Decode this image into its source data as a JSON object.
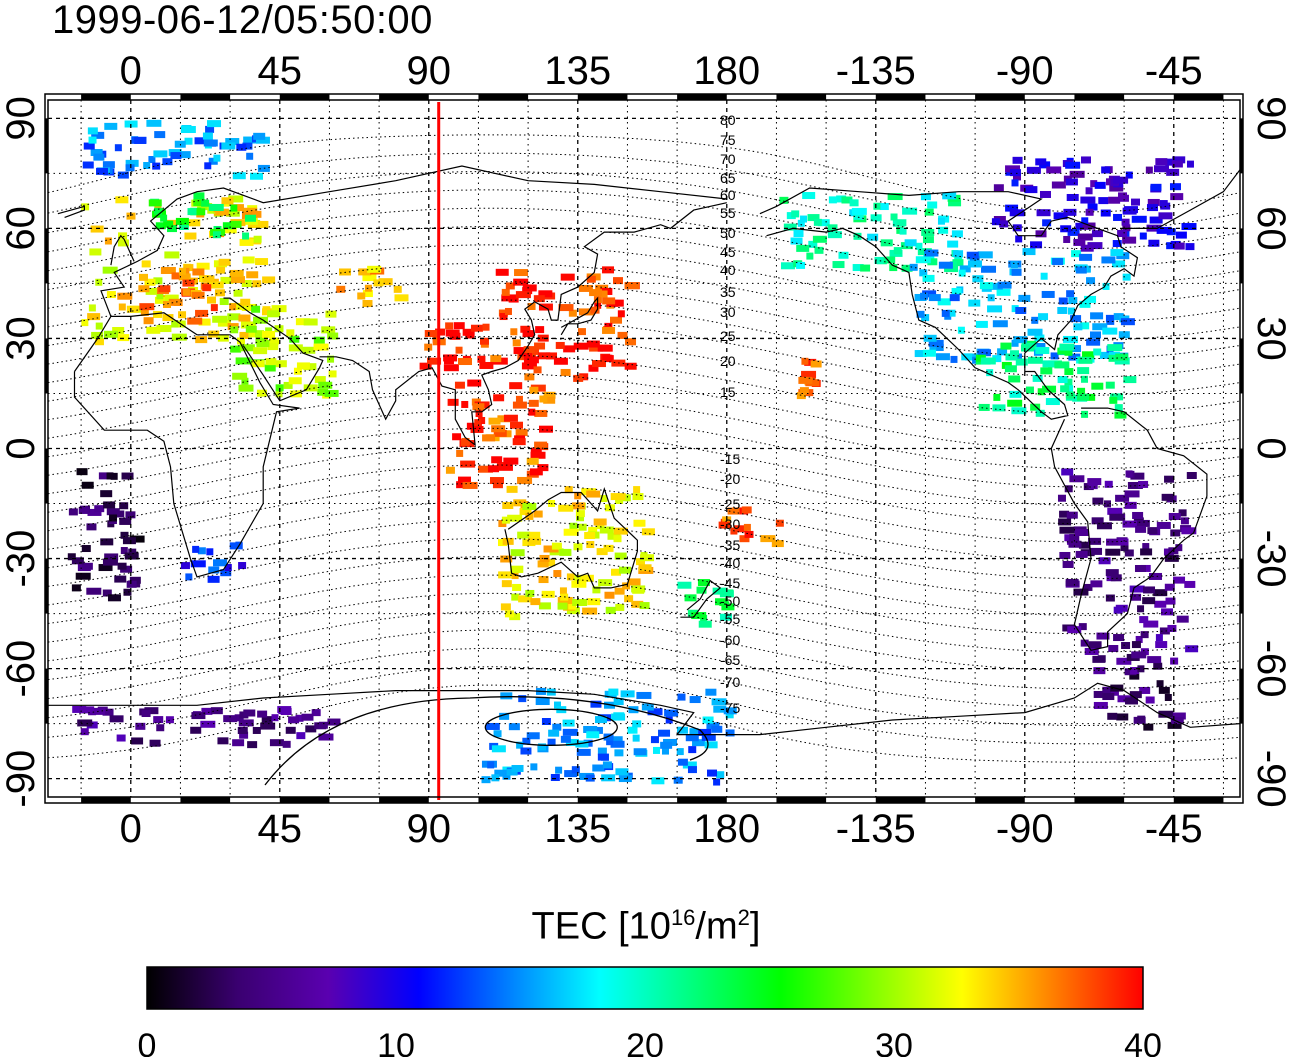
{
  "header": {
    "timestamp": "1999-06-12/05:50:00"
  },
  "axes": {
    "lon_ticks": [
      "0",
      "45",
      "90",
      "135",
      "180",
      "-135",
      "-90",
      "-45"
    ],
    "lat_ticks": [
      "90",
      "60",
      "30",
      "0",
      "-30",
      "-60",
      "-90"
    ]
  },
  "contours": {
    "north_labels": [
      "80",
      "75",
      "70",
      "65",
      "60",
      "55",
      "50",
      "45",
      "40",
      "35",
      "30",
      "25",
      "20",
      "15"
    ],
    "south_labels": [
      "-15",
      "-20",
      "-25",
      "-30",
      "-35",
      "-40",
      "-45",
      "-50",
      "-55",
      "-60",
      "-65",
      "-70",
      "-75"
    ]
  },
  "colorbar": {
    "title_prefix": "TEC  [10",
    "title_exp1": "16",
    "title_mid": "/m",
    "title_exp2": "2",
    "title_suffix": "]",
    "min": 0,
    "max": 40,
    "ticks": [
      "0",
      "10",
      "20",
      "30",
      "40"
    ],
    "colors": [
      "#000000",
      "#3a0070",
      "#5a00b0",
      "#0000ff",
      "#0080ff",
      "#00ffff",
      "#00ff80",
      "#00ff00",
      "#80ff00",
      "#ffff00",
      "#ff8000",
      "#ff0000"
    ]
  },
  "marker": {
    "longitude": 93,
    "color": "#ff0000"
  },
  "map_extent": {
    "lon_min": -25,
    "lon_max": 335,
    "lat_min": -95,
    "lat_max": 95
  },
  "tec_clusters": [
    {
      "region": "Europe",
      "lon": [
        -15,
        40
      ],
      "lat": [
        30,
        70
      ],
      "tec": 33
    },
    {
      "region": "Italy / Mediterranean",
      "lon": [
        0,
        25
      ],
      "lat": [
        35,
        50
      ],
      "tec": 36
    },
    {
      "region": "Scandinavia",
      "lon": [
        5,
        35
      ],
      "lat": [
        58,
        70
      ],
      "tec": 24
    },
    {
      "region": "Arctic North Atlantic",
      "lon": [
        -15,
        40
      ],
      "lat": [
        75,
        90
      ],
      "tec": 15
    },
    {
      "region": "Middle East",
      "lon": [
        30,
        60
      ],
      "lat": [
        15,
        40
      ],
      "tec": 30
    },
    {
      "region": "Central Asia",
      "lon": [
        60,
        80
      ],
      "lat": [
        40,
        50
      ],
      "tec": 35
    },
    {
      "region": "East Asia",
      "lon": [
        110,
        150
      ],
      "lat": [
        20,
        50
      ],
      "tec": 39
    },
    {
      "region": "South Asia / Tibet",
      "lon": [
        85,
        110
      ],
      "lat": [
        20,
        35
      ],
      "tec": 39
    },
    {
      "region": "Southeast Asia",
      "lon": [
        95,
        125
      ],
      "lat": [
        -10,
        20
      ],
      "tec": 38
    },
    {
      "region": "Australia",
      "lon": [
        110,
        155
      ],
      "lat": [
        -45,
        -10
      ],
      "tec": 33
    },
    {
      "region": "New Zealand",
      "lon": [
        165,
        180
      ],
      "lat": [
        -50,
        -35
      ],
      "tec": 22
    },
    {
      "region": "South Pacific",
      "lon": [
        175,
        195
      ],
      "lat": [
        -25,
        -15
      ],
      "tec": 38
    },
    {
      "region": "Hawaii",
      "lon": [
        198,
        208
      ],
      "lat": [
        15,
        25
      ],
      "tec": 38
    },
    {
      "region": "Alaska / Western Canada",
      "lon": [
        195,
        250
      ],
      "lat": [
        50,
        70
      ],
      "tec": 20
    },
    {
      "region": "North America",
      "lon": [
        235,
        300
      ],
      "lat": [
        25,
        55
      ],
      "tec": 16
    },
    {
      "region": "Eastern Canada",
      "lon": [
        260,
        320
      ],
      "lat": [
        55,
        80
      ],
      "tec": 9
    },
    {
      "region": "Central America / Caribbean",
      "lon": [
        255,
        300
      ],
      "lat": [
        10,
        30
      ],
      "tec": 22
    },
    {
      "region": "South America",
      "lon": [
        280,
        320
      ],
      "lat": [
        -55,
        -5
      ],
      "tec": 5
    },
    {
      "region": "Tierra del Fuego",
      "lon": [
        290,
        315
      ],
      "lat": [
        -75,
        -55
      ],
      "tec": 4
    },
    {
      "region": "Antarctica",
      "lon": [
        105,
        180
      ],
      "lat": [
        -90,
        -65
      ],
      "tec": 15
    },
    {
      "region": "Antarctic coast West",
      "lon": [
        -20,
        60
      ],
      "lat": [
        -80,
        -70
      ],
      "tec": 5
    },
    {
      "region": "South Atlantic",
      "lon": [
        -20,
        0
      ],
      "lat": [
        -40,
        -5
      ],
      "tec": 3
    },
    {
      "region": "South Africa",
      "lon": [
        15,
        35
      ],
      "lat": [
        -35,
        -25
      ],
      "tec": 12
    }
  ]
}
